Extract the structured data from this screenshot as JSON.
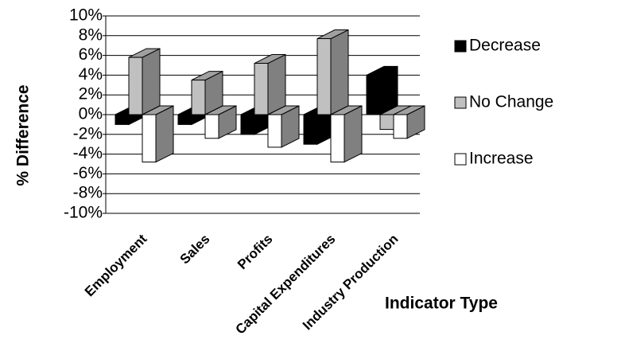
{
  "chart_data": {
    "type": "bar3d",
    "y_label": "% Difference",
    "x_label": "Indicator Type",
    "categories": [
      "Employment",
      "Sales",
      "Profits",
      "Capital Expenditures",
      "Industry Production"
    ],
    "series": [
      {
        "name": "Decrease",
        "color": "#000000",
        "values": [
          -1,
          -1,
          -2,
          -3,
          4
        ]
      },
      {
        "name": "No Change",
        "color": "#c0c0c0",
        "values": [
          5.8,
          3.5,
          5.2,
          7.7,
          -1.5
        ]
      },
      {
        "name": "Increase",
        "color": "#ffffff",
        "values": [
          -4.8,
          -2.4,
          -3.3,
          -4.8,
          -2.4
        ]
      }
    ],
    "ylim": [
      -10,
      10
    ],
    "yticks": [
      {
        "value": -10,
        "label": "-10%"
      },
      {
        "value": -8,
        "label": "-8%"
      },
      {
        "value": -6,
        "label": "-6%"
      },
      {
        "value": -4,
        "label": "-4%"
      },
      {
        "value": -2,
        "label": "-2%"
      },
      {
        "value": 0,
        "label": "0%"
      },
      {
        "value": 2,
        "label": "2%"
      },
      {
        "value": 4,
        "label": "4%"
      },
      {
        "value": 6,
        "label": "6%"
      },
      {
        "value": 8,
        "label": "8%"
      },
      {
        "value": 10,
        "label": "10%"
      }
    ],
    "grid": true,
    "legend": "right"
  }
}
